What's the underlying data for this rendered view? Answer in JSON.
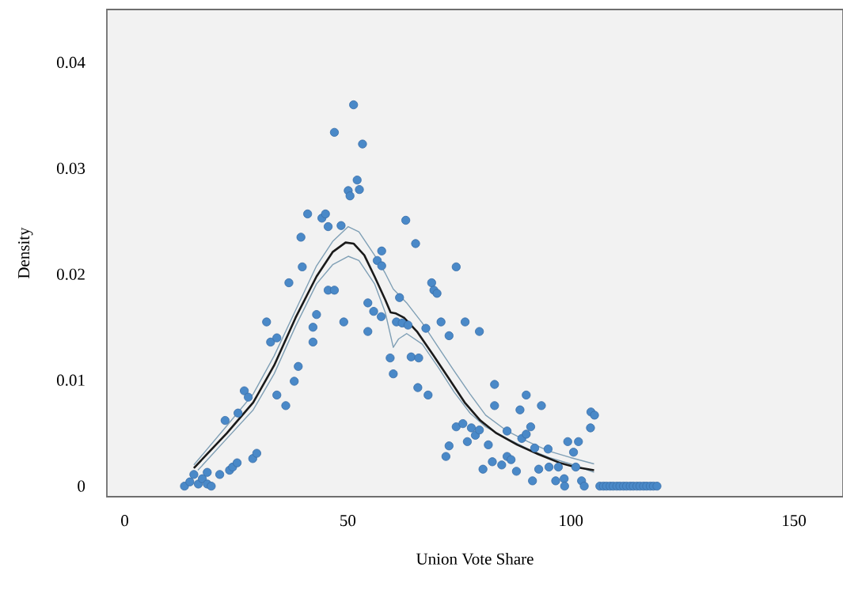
{
  "chart_data": {
    "type": "scatter",
    "xlabel": "Union Vote Share",
    "ylabel": "Density",
    "xlim": [
      -4,
      161
    ],
    "ylim": [
      -0.001,
      0.045
    ],
    "xticks": [
      0,
      50,
      100,
      150
    ],
    "yticks": [
      0,
      0.01,
      0.02,
      0.03,
      0.04
    ],
    "grid": false,
    "series": [
      {
        "color": "#4a89c8",
        "marker": "circle",
        "x": [
          13.4,
          14.6,
          15.5,
          16.5,
          17.4,
          18.5,
          18.5,
          19.4,
          21.3,
          22.5,
          23.5,
          24.2,
          25.2,
          25.4,
          26.8,
          27.7,
          28.7,
          29.6,
          31.8,
          32.7,
          34.1,
          34.1,
          36.1,
          36.8,
          38,
          38.9,
          39.5,
          39.8,
          41,
          42.2,
          42.2,
          43,
          44.2,
          45,
          45.6,
          45.6,
          47,
          47,
          48.5,
          49.1,
          50.1,
          50.5,
          51.3,
          52.1,
          52.6,
          53.3,
          54.5,
          54.5,
          55.8,
          56.6,
          57.6,
          57.6,
          57.5,
          59.5,
          60.2,
          60.9,
          61.6,
          62.2,
          63.5,
          63,
          64.2,
          65.2,
          65.9,
          65.7,
          67.5,
          68,
          68.8,
          69.3,
          70,
          70.9,
          72,
          72.7,
          72.7,
          74.3,
          74.3,
          75.8,
          76.3,
          76.8,
          77.7,
          78.6,
          79.5,
          79.5,
          80.3,
          81.5,
          82.4,
          82.9,
          82.9,
          84.5,
          85.7,
          85.7,
          86.6,
          87.8,
          88.6,
          89,
          90,
          90,
          91,
          91.4,
          91.9,
          92.8,
          93.4,
          94.9,
          95.1,
          96.6,
          97.2,
          98.5,
          98.6,
          99.3,
          100.6,
          101.1,
          101.7,
          102.4,
          103,
          104.4,
          104.5,
          105.3,
          106.5,
          107.3,
          108,
          108.8,
          109.5,
          110.3,
          111,
          111.8,
          112.5,
          113.3,
          114,
          114.8,
          115.5,
          116.3,
          117,
          117.8,
          118.5,
          119.3
        ],
        "values": [
          0,
          0.0004,
          0.0011,
          0.0002,
          0.0007,
          0.0013,
          0.0002,
          0,
          0.0011,
          0.0062,
          0.0015,
          0.0018,
          0.0022,
          0.0069,
          0.009,
          0.0084,
          0.0026,
          0.0031,
          0.0155,
          0.0136,
          0.014,
          0.0086,
          0.0076,
          0.0192,
          0.0099,
          0.0113,
          0.0235,
          0.0207,
          0.0257,
          0.015,
          0.0136,
          0.0162,
          0.0253,
          0.0257,
          0.0245,
          0.0185,
          0.0185,
          0.0334,
          0.0246,
          0.0155,
          0.0279,
          0.0274,
          0.036,
          0.0289,
          0.028,
          0.0323,
          0.0173,
          0.0146,
          0.0165,
          0.0213,
          0.0222,
          0.0208,
          0.016,
          0.0121,
          0.0106,
          0.0155,
          0.0178,
          0.0154,
          0.0152,
          0.0251,
          0.0122,
          0.0229,
          0.0121,
          0.0093,
          0.0149,
          0.0086,
          0.0192,
          0.0185,
          0.0182,
          0.0155,
          0.0028,
          0.0038,
          0.0142,
          0.0207,
          0.0056,
          0.0059,
          0.0155,
          0.0042,
          0.0055,
          0.0048,
          0.0146,
          0.0053,
          0.0016,
          0.0039,
          0.0023,
          0.0096,
          0.0076,
          0.002,
          0.0052,
          0.0028,
          0.0025,
          0.0014,
          0.0072,
          0.0045,
          0.0086,
          0.0049,
          0.0056,
          0.0005,
          0.0036,
          0.0016,
          0.0076,
          0.0035,
          0.0018,
          0.0005,
          0.0018,
          0.0007,
          0,
          0.0042,
          0.0032,
          0.0018,
          0.0042,
          0.0005,
          0,
          0.0055,
          0.007,
          0.0067,
          0,
          0,
          0,
          0,
          0,
          0,
          0,
          0,
          0,
          0,
          0,
          0,
          0,
          0,
          0,
          0,
          0,
          0
        ]
      },
      {
        "type": "line",
        "color": "#1a1a1a",
        "line_style": "solid",
        "marker": "none",
        "x": [
          15.5,
          22.9,
          28.8,
          33.5,
          38.3,
          43,
          46.6,
          49.5,
          51.3,
          53.7,
          56,
          58.4,
          59.6,
          60.8,
          62.6,
          65.5,
          69.1,
          72.6,
          76.2,
          79.7,
          83.3,
          88,
          92.8,
          97.5,
          101,
          105.2
        ],
        "values": [
          0.0017,
          0.005,
          0.0079,
          0.0114,
          0.0159,
          0.0198,
          0.0221,
          0.023,
          0.0229,
          0.0218,
          0.0198,
          0.0176,
          0.0164,
          0.0163,
          0.0159,
          0.0146,
          0.0124,
          0.0102,
          0.0079,
          0.0062,
          0.005,
          0.0039,
          0.003,
          0.0022,
          0.0018,
          0.0015
        ]
      },
      {
        "type": "line",
        "color": "#7f9fb5",
        "line_style": "solid",
        "marker": "none",
        "x": [
          15.5,
          22.9,
          28.8,
          33.5,
          38.3,
          43,
          46.6,
          50.1,
          52.5,
          56,
          58.4,
          60.2,
          63.2,
          66.7,
          70.3,
          73.8,
          77.4,
          80.9,
          85.7,
          90.4,
          95.1,
          99.9,
          105.2
        ],
        "values": [
          0.002,
          0.0057,
          0.0087,
          0.0123,
          0.0166,
          0.0208,
          0.0231,
          0.0245,
          0.024,
          0.0218,
          0.0201,
          0.0186,
          0.0173,
          0.0154,
          0.0131,
          0.0109,
          0.0087,
          0.0067,
          0.0052,
          0.0042,
          0.0033,
          0.0027,
          0.0021
        ]
      },
      {
        "type": "line",
        "color": "#7f9fb5",
        "line_style": "solid",
        "marker": "none",
        "x": [
          16.4,
          22.9,
          28.8,
          33.5,
          38.3,
          43,
          46.6,
          50.1,
          52.5,
          56,
          58.4,
          60.2,
          61.4,
          63.2,
          66.7,
          70.3,
          73.8,
          77.4,
          80.9,
          85.7,
          90.4,
          95.1,
          99.9,
          105.2
        ],
        "values": [
          0.0015,
          0.0045,
          0.0072,
          0.0106,
          0.0151,
          0.0191,
          0.0209,
          0.0217,
          0.0213,
          0.0191,
          0.0164,
          0.0131,
          0.0139,
          0.0144,
          0.0134,
          0.0112,
          0.0089,
          0.0069,
          0.0056,
          0.0045,
          0.0035,
          0.0027,
          0.0021,
          0.0013
        ]
      }
    ]
  }
}
